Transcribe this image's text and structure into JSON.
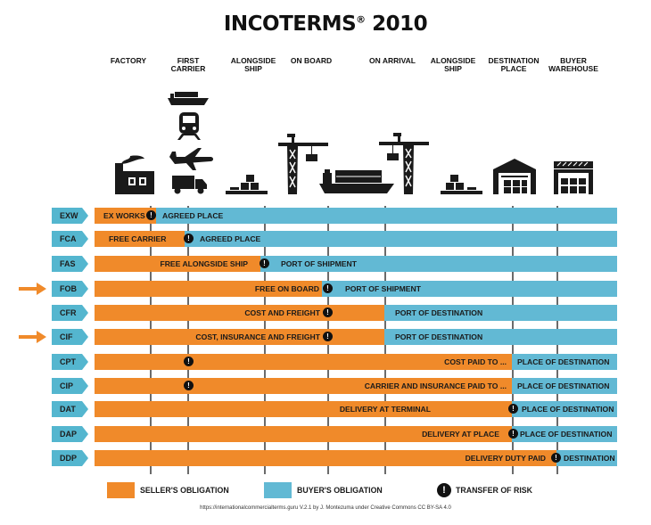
{
  "title": "INCOTERMS",
  "title_mark": "®",
  "title_year": "2010",
  "stages": [
    {
      "id": "factory",
      "line1": "FACTORY",
      "line2": ""
    },
    {
      "id": "first-carrier",
      "line1": "FIRST",
      "line2": "CARRIER"
    },
    {
      "id": "alongside-ship-1",
      "line1": "ALONGSIDE",
      "line2": "SHIP"
    },
    {
      "id": "on-board",
      "line1": "ON BOARD",
      "line2": ""
    },
    {
      "id": "on-arrival",
      "line1": "ON ARRIVAL",
      "line2": ""
    },
    {
      "id": "alongside-ship-2",
      "line1": "ALONGSIDE",
      "line2": "SHIP"
    },
    {
      "id": "destination-place",
      "line1": "DESTINATION",
      "line2": "PLACE"
    },
    {
      "id": "buyer-warehouse",
      "line1": "BUYER",
      "line2": "WAREHOUSE"
    }
  ],
  "terms": [
    {
      "code": "EXW",
      "seller_label": "EX WORKS",
      "buyer_label": "AGREED PLACE",
      "risk": "!",
      "highlighted": false
    },
    {
      "code": "FCA",
      "seller_label": "FREE CARRIER",
      "buyer_label": "AGREED PLACE",
      "risk": "!",
      "highlighted": false
    },
    {
      "code": "FAS",
      "seller_label": "FREE ALONGSIDE SHIP",
      "buyer_label": "PORT OF SHIPMENT",
      "risk": "!",
      "highlighted": false
    },
    {
      "code": "FOB",
      "seller_label": "FREE ON BOARD",
      "buyer_label": "PORT OF SHIPMENT",
      "risk": "!",
      "highlighted": true
    },
    {
      "code": "CFR",
      "seller_label": "COST AND FREIGHT",
      "buyer_label": "PORT OF DESTINATION",
      "risk": "!",
      "highlighted": false
    },
    {
      "code": "CIF",
      "seller_label": "COST, INSURANCE AND FREIGHT",
      "buyer_label": "PORT OF DESTINATION",
      "risk": "!",
      "highlighted": true
    },
    {
      "code": "CPT",
      "seller_label": "COST PAID TO ...",
      "buyer_label": "PLACE OF DESTINATION",
      "risk": "!",
      "highlighted": false
    },
    {
      "code": "CIP",
      "seller_label": "CARRIER AND INSURANCE PAID TO ...",
      "buyer_label": "PLACE OF DESTINATION",
      "risk": "!",
      "highlighted": false
    },
    {
      "code": "DAT",
      "seller_label": "DELIVERY AT TERMINAL",
      "buyer_label": "PLACE OF DESTINATION",
      "risk": "!",
      "highlighted": false
    },
    {
      "code": "DAP",
      "seller_label": "DELIVERY AT PLACE",
      "buyer_label": "PLACE OF DESTINATION",
      "risk": "!",
      "highlighted": false
    },
    {
      "code": "DDP",
      "seller_label": "DELIVERY DUTY PAID",
      "buyer_label": "DESTINATION",
      "risk": "!",
      "highlighted": false
    }
  ],
  "legend": {
    "seller": "SELLER'S OBLIGATION",
    "buyer": "BUYER'S OBLIGATION",
    "risk": "TRANSFER OF RISK",
    "risk_symbol": "!"
  },
  "credit": "https://internationalcommercialterms.guru V.2.1 by J. Montezuma under Creative Commons CC BY-SA 4.0",
  "colors": {
    "seller": "#f08a2a",
    "buyer": "#62b9d4",
    "code_tab": "#54b6cf",
    "risk": "#111111",
    "arrow": "#f08a2a",
    "icons": "#1a1a1a"
  },
  "icons": [
    "factory-icon",
    "container-ship-icon",
    "train-icon",
    "airplane-icon",
    "truck-icon",
    "pallet-icon",
    "crane-icon",
    "ship-icon",
    "warehouse-icon"
  ]
}
